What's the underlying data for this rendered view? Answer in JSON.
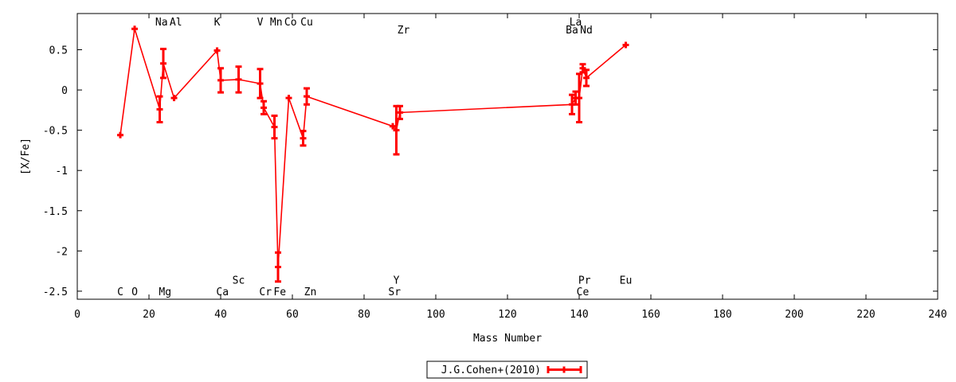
{
  "chart_data": {
    "type": "line",
    "xlabel": "Mass Number",
    "ylabel": "[X/Fe]",
    "xlim": [
      0,
      240
    ],
    "ylim": [
      -2.6,
      0.95
    ],
    "xticks": [
      0,
      20,
      40,
      60,
      80,
      100,
      120,
      140,
      160,
      180,
      200,
      220,
      240
    ],
    "yticks": [
      -2.5,
      -2,
      -1.5,
      -1,
      -0.5,
      0,
      0.5
    ],
    "legend_placement": "bottom-center",
    "series": [
      {
        "name": "J.G.Cohen+(2010)",
        "color": "#ff0000",
        "points": [
          {
            "x": 12,
            "y": -0.56,
            "err": 0
          },
          {
            "x": 16,
            "y": 0.76,
            "err": 0
          },
          {
            "x": 23,
            "y": -0.24,
            "err": 0.16
          },
          {
            "x": 24,
            "y": 0.33,
            "err": 0.18
          },
          {
            "x": 27,
            "y": -0.1,
            "err": 0
          },
          {
            "x": 39,
            "y": 0.49,
            "err": 0
          },
          {
            "x": 40,
            "y": 0.12,
            "err": 0.15
          },
          {
            "x": 45,
            "y": 0.13,
            "err": 0.16
          },
          {
            "x": 51,
            "y": 0.08,
            "err": 0.18
          },
          {
            "x": 52,
            "y": -0.22,
            "err": 0.08
          },
          {
            "x": 55,
            "y": -0.46,
            "err": 0.14
          },
          {
            "x": 56,
            "y": -2.2,
            "err": 0.18
          },
          {
            "x": 59,
            "y": -0.1,
            "err": 0
          },
          {
            "x": 63,
            "y": -0.6,
            "err": 0.09
          },
          {
            "x": 64,
            "y": -0.08,
            "err": 0.1
          },
          {
            "x": 88,
            "y": -0.45,
            "err": 0
          },
          {
            "x": 89,
            "y": -0.5,
            "err": 0.3
          },
          {
            "x": 90,
            "y": -0.28,
            "err": 0.08
          },
          {
            "x": 138,
            "y": -0.18,
            "err": 0.12
          },
          {
            "x": 139,
            "y": -0.1,
            "err": 0.08
          },
          {
            "x": 140,
            "y": -0.1,
            "err": 0.3
          },
          {
            "x": 141,
            "y": 0.27,
            "err": 0.05
          },
          {
            "x": 142,
            "y": 0.15,
            "err": 0.1
          },
          {
            "x": 153,
            "y": 0.56,
            "err": 0
          }
        ]
      }
    ],
    "annotations": [
      {
        "text": "C",
        "x": 12,
        "y": -2.5
      },
      {
        "text": "O",
        "x": 16,
        "y": -2.5
      },
      {
        "text": "Mg",
        "x": 24.5,
        "y": -2.5
      },
      {
        "text": "Ca",
        "x": 40.5,
        "y": -2.5
      },
      {
        "text": "Sc",
        "x": 45,
        "y": -2.36
      },
      {
        "text": "Cr",
        "x": 52.5,
        "y": -2.5
      },
      {
        "text": "Fe",
        "x": 56.5,
        "y": -2.5
      },
      {
        "text": "Zn",
        "x": 65,
        "y": -2.5
      },
      {
        "text": "Y",
        "x": 89,
        "y": -2.36
      },
      {
        "text": "Sr",
        "x": 88.5,
        "y": -2.5
      },
      {
        "text": "Pr",
        "x": 141.5,
        "y": -2.36
      },
      {
        "text": "Ce",
        "x": 141,
        "y": -2.5
      },
      {
        "text": "Eu",
        "x": 153,
        "y": -2.36
      },
      {
        "text": "Na",
        "x": 23.5,
        "y": 0.85
      },
      {
        "text": "Al",
        "x": 27.5,
        "y": 0.85
      },
      {
        "text": "K",
        "x": 39,
        "y": 0.85
      },
      {
        "text": "V",
        "x": 51,
        "y": 0.85
      },
      {
        "text": "Mn",
        "x": 55.5,
        "y": 0.85
      },
      {
        "text": "Co",
        "x": 59.5,
        "y": 0.85
      },
      {
        "text": "Cu",
        "x": 64,
        "y": 0.85
      },
      {
        "text": "Zr",
        "x": 91,
        "y": 0.75
      },
      {
        "text": "La",
        "x": 139,
        "y": 0.85
      },
      {
        "text": "Ba",
        "x": 138,
        "y": 0.75
      },
      {
        "text": "Nd",
        "x": 142,
        "y": 0.75
      }
    ]
  }
}
